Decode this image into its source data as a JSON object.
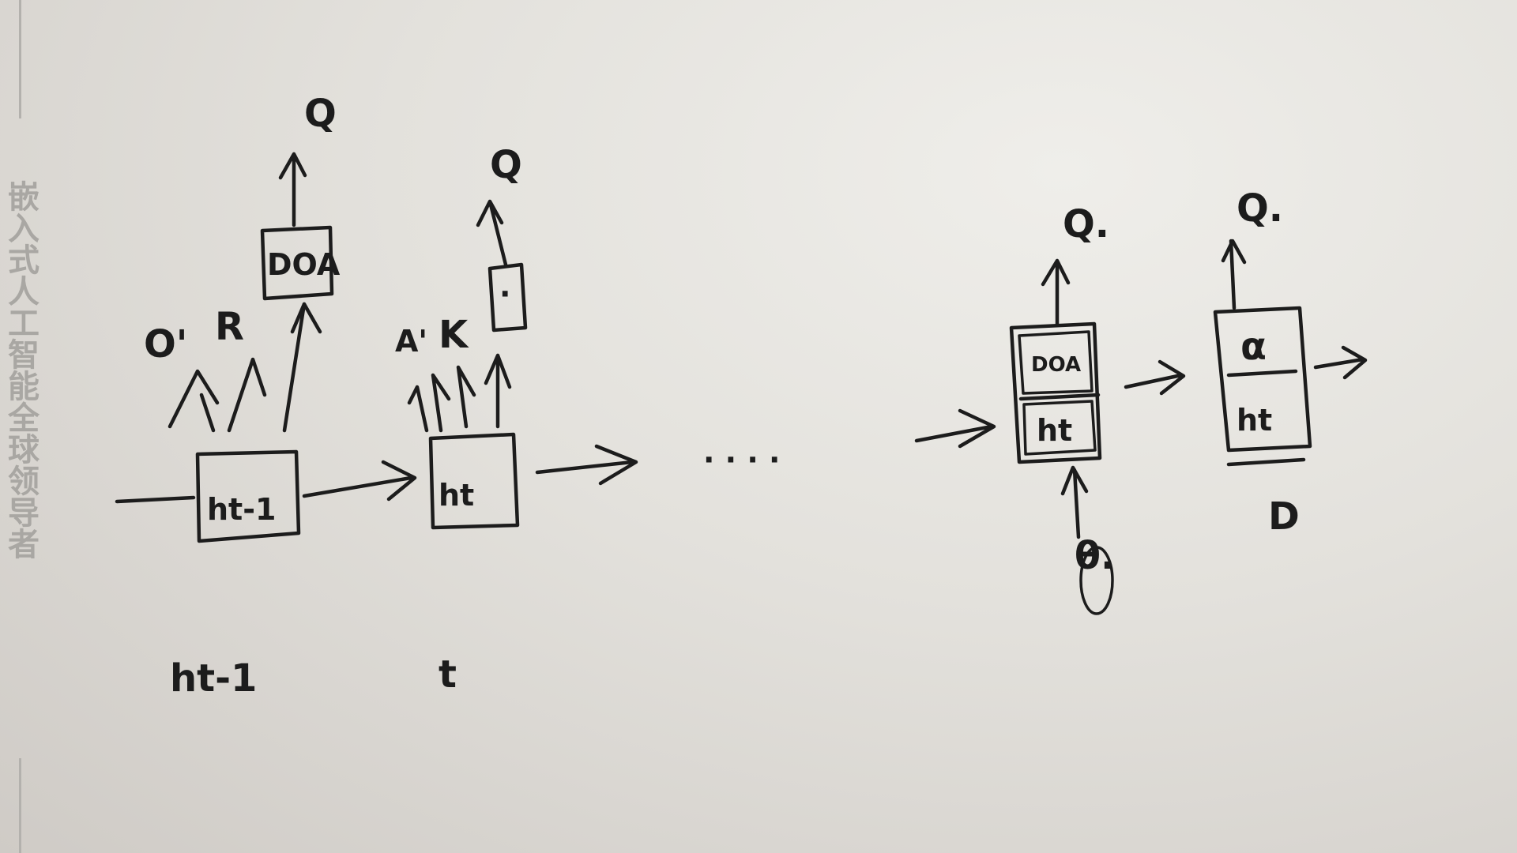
{
  "margin_text": "嵌入式人工智能全球领导者",
  "sketch": {
    "step1": {
      "cell_label": "ht-1",
      "output_box_label": "DOA",
      "top_label": "Q",
      "input_labels": [
        "O'",
        "R"
      ],
      "time_label": "ht-1"
    },
    "step2": {
      "cell_label": "ht",
      "output_box_label": "·",
      "top_label": "Q",
      "input_labels": [
        "A'",
        "K"
      ],
      "time_label": "t"
    },
    "ellipsis": "· · · ·",
    "step3": {
      "top_box_label": "DOA",
      "bottom_box_label": "ht",
      "top_label": "Q.",
      "bottom_label": "θ."
    },
    "step4": {
      "top_label": "Q.",
      "box_label_top": "α",
      "box_label_bottom": "ht",
      "bottom_label": "D"
    }
  }
}
